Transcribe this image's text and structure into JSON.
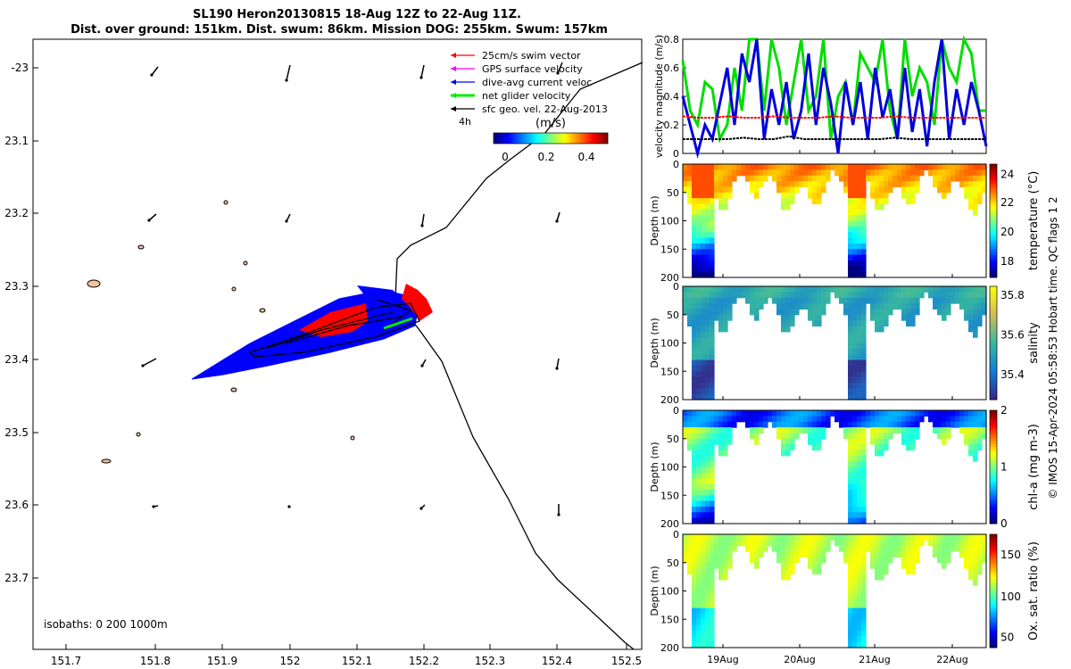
{
  "header": {
    "title_line1": "SL190 Heron20130815 18-Aug 12Z to 22-Aug 11Z.",
    "title_line2": "Dist. over ground: 151km. Dist. swum: 86km. Mission DOG: 255km. Swum: 157km"
  },
  "map": {
    "x_ticks": [
      "151.7",
      "151.8",
      "151.9",
      "152",
      "152.1",
      "152.2",
      "152.3",
      "152.4",
      "152.5"
    ],
    "y_ticks": [
      "-23",
      "23.1",
      "23.2",
      "23.3",
      "23.4",
      "23.5",
      "23.6",
      "23.7"
    ],
    "legend": [
      {
        "label": "25cm/s swim vector",
        "color": "#ff0000"
      },
      {
        "label": "GPS surface velocity",
        "color": "#ff00ff"
      },
      {
        "label": "dive-avg current veloc",
        "color": "#0000ff"
      },
      {
        "label": "net glider velocity",
        "color": "#00ee00"
      },
      {
        "label": "sfc geo. vel. 22-Aug-2013",
        "color": "#000000"
      }
    ],
    "legend_4h": "4h",
    "colorbar_title": "(m/s)",
    "colorbar_ticks": [
      "0",
      "0.2",
      "0.4"
    ],
    "isobaths_label": "isobaths: 0   200  1000m"
  },
  "chart_data": [
    {
      "type": "line",
      "id": "velocity",
      "ylabel": "velocity magnitude (m/s)",
      "ylim": [
        0,
        0.8
      ],
      "y_ticks": [
        "0",
        "0.2",
        "0.4",
        "0.6",
        "0.8"
      ],
      "series": [
        {
          "color": "#00dd00",
          "values": [
            0.65,
            0.3,
            0.2,
            0.5,
            0.45,
            0.1,
            0.2,
            0.6,
            0.3,
            0.8,
            0.8,
            0.3,
            0.8,
            0.6,
            0.2,
            0.5,
            0.8,
            0.3,
            0.4,
            0.8,
            0.1,
            0.4,
            0.5,
            0.2,
            0.7,
            0.6,
            0.5,
            0.8,
            0.3,
            0.1,
            0.8,
            0.4,
            0.6,
            0.5,
            0.2,
            0.8,
            0.6,
            0.5,
            0.8,
            0.7,
            0.3,
            0.3
          ]
        },
        {
          "color": "#0000dd",
          "values": [
            0.4,
            0.2,
            0.0,
            0.2,
            0.1,
            0.35,
            0.6,
            0.2,
            0.7,
            0.5,
            0.8,
            0.1,
            0.45,
            0.2,
            0.5,
            0.1,
            0.3,
            0.7,
            0.2,
            0.6,
            0.35,
            0.0,
            0.5,
            0.2,
            0.5,
            0.1,
            0.6,
            0.25,
            0.45,
            0.1,
            0.6,
            0.15,
            0.45,
            0.05,
            0.5,
            0.8,
            0.1,
            0.45,
            0.2,
            0.5,
            0.3,
            0.05
          ]
        },
        {
          "color": "#ff0000",
          "values": [
            0.26,
            0.25,
            0.25,
            0.26,
            0.25,
            0.25,
            0.26,
            0.25,
            0.25,
            0.25,
            0.26,
            0.25,
            0.25,
            0.25,
            0.26,
            0.25,
            0.25,
            0.25,
            0.25,
            0.25,
            0.25
          ]
        },
        {
          "color": "#000000",
          "values": [
            0.1,
            0.1,
            0.1,
            0.1,
            0.11,
            0.1,
            0.1,
            0.12,
            0.1,
            0.1,
            0.1,
            0.1,
            0.1,
            0.1,
            0.11,
            0.1,
            0.1,
            0.1,
            0.1,
            0.1,
            0.1
          ]
        }
      ]
    },
    {
      "type": "heatmap",
      "id": "temperature",
      "ylabel": "Depth (m)",
      "y_ticks": [
        "0",
        "50",
        "100",
        "150",
        "200"
      ],
      "colorbar_label": "temperature (°C)",
      "colorbar_ticks": [
        "24",
        "22",
        "20",
        "18"
      ],
      "clim": [
        17.4,
        24.4
      ]
    },
    {
      "type": "heatmap",
      "id": "salinity",
      "ylabel": "Depth (m)",
      "y_ticks": [
        "0",
        "50",
        "100",
        "150",
        "200"
      ],
      "colorbar_label": "salinity",
      "colorbar_ticks": [
        "35.8",
        "35.6",
        "35.4"
      ],
      "clim": [
        35.3,
        35.85
      ]
    },
    {
      "type": "heatmap",
      "id": "chla",
      "ylabel": "Depth (m)",
      "y_ticks": [
        "0",
        "50",
        "100",
        "150",
        "200"
      ],
      "colorbar_label": "chl-a (mg m-3)",
      "colorbar_ticks": [
        "2",
        "1",
        "0"
      ],
      "clim": [
        0,
        2
      ]
    },
    {
      "type": "heatmap",
      "id": "oxygen",
      "ylabel": "Depth (m)",
      "y_ticks": [
        "0",
        "50",
        "100",
        "150",
        "200"
      ],
      "colorbar_label": "Ox. sat. ratio (%)",
      "colorbar_ticks": [
        "150",
        "100",
        "50"
      ],
      "clim": [
        25,
        175
      ],
      "x_ticks": [
        "19Aug",
        "20Aug",
        "21Aug",
        "22Aug"
      ]
    }
  ],
  "footer": {
    "credit": "© IMOS 15-Apr-2024 05:58:53 Hobart time. QC flags 1  2"
  }
}
